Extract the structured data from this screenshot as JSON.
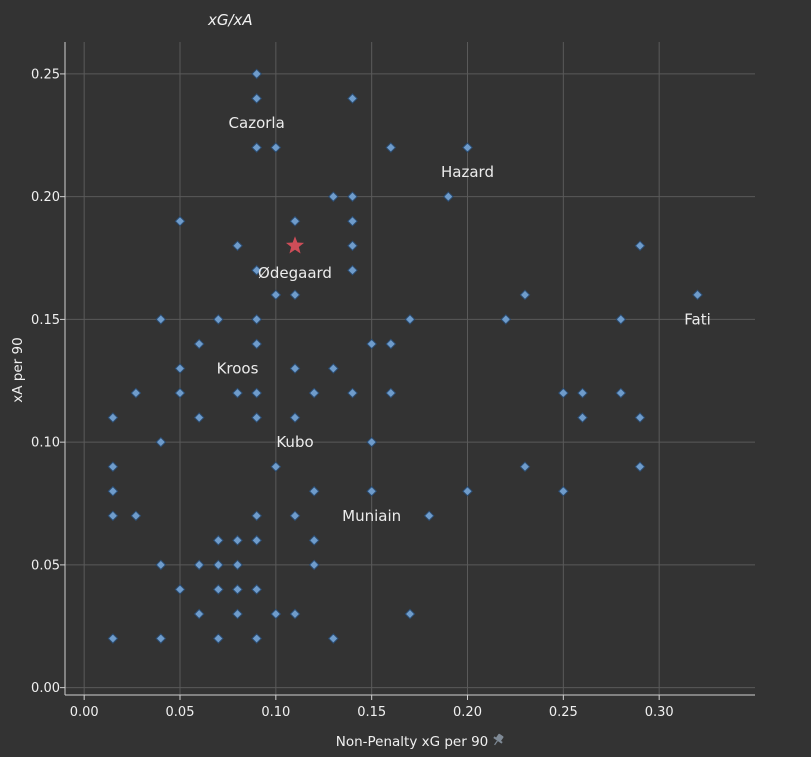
{
  "chart_data": {
    "type": "scatter",
    "title": "xG/xA",
    "xlabel": "Non-Penalty xG per 90",
    "ylabel": "xA per 90",
    "xlim": [
      -0.01,
      0.35
    ],
    "ylim": [
      -0.003,
      0.263
    ],
    "grid": true,
    "x_ticks": [
      "0.00",
      "0.05",
      "0.10",
      "0.15",
      "0.20",
      "0.25",
      "0.30"
    ],
    "y_ticks": [
      "0.00",
      "0.05",
      "0.10",
      "0.15",
      "0.20",
      "0.25"
    ],
    "points": [
      [
        0.09,
        0.25
      ],
      [
        0.09,
        0.24
      ],
      [
        0.14,
        0.24
      ],
      [
        0.09,
        0.22
      ],
      [
        0.1,
        0.22
      ],
      [
        0.16,
        0.22
      ],
      [
        0.2,
        0.22
      ],
      [
        0.13,
        0.2
      ],
      [
        0.14,
        0.2
      ],
      [
        0.19,
        0.2
      ],
      [
        0.05,
        0.19
      ],
      [
        0.11,
        0.19
      ],
      [
        0.14,
        0.19
      ],
      [
        0.08,
        0.18
      ],
      [
        0.14,
        0.18
      ],
      [
        0.29,
        0.18
      ],
      [
        0.09,
        0.17
      ],
      [
        0.14,
        0.17
      ],
      [
        0.1,
        0.16
      ],
      [
        0.11,
        0.16
      ],
      [
        0.23,
        0.16
      ],
      [
        0.32,
        0.16
      ],
      [
        0.04,
        0.15
      ],
      [
        0.07,
        0.15
      ],
      [
        0.09,
        0.15
      ],
      [
        0.17,
        0.15
      ],
      [
        0.22,
        0.15
      ],
      [
        0.28,
        0.15
      ],
      [
        0.06,
        0.14
      ],
      [
        0.09,
        0.14
      ],
      [
        0.15,
        0.14
      ],
      [
        0.16,
        0.14
      ],
      [
        0.05,
        0.13
      ],
      [
        0.11,
        0.13
      ],
      [
        0.13,
        0.13
      ],
      [
        0.027,
        0.12
      ],
      [
        0.05,
        0.12
      ],
      [
        0.08,
        0.12
      ],
      [
        0.09,
        0.12
      ],
      [
        0.12,
        0.12
      ],
      [
        0.14,
        0.12
      ],
      [
        0.16,
        0.12
      ],
      [
        0.25,
        0.12
      ],
      [
        0.26,
        0.12
      ],
      [
        0.28,
        0.12
      ],
      [
        0.015,
        0.11
      ],
      [
        0.06,
        0.11
      ],
      [
        0.09,
        0.11
      ],
      [
        0.11,
        0.11
      ],
      [
        0.26,
        0.11
      ],
      [
        0.29,
        0.11
      ],
      [
        0.04,
        0.1
      ],
      [
        0.15,
        0.1
      ],
      [
        0.015,
        0.09
      ],
      [
        0.1,
        0.09
      ],
      [
        0.23,
        0.09
      ],
      [
        0.29,
        0.09
      ],
      [
        0.015,
        0.08
      ],
      [
        0.12,
        0.08
      ],
      [
        0.15,
        0.08
      ],
      [
        0.2,
        0.08
      ],
      [
        0.25,
        0.08
      ],
      [
        0.015,
        0.07
      ],
      [
        0.027,
        0.07
      ],
      [
        0.09,
        0.07
      ],
      [
        0.11,
        0.07
      ],
      [
        0.18,
        0.07
      ],
      [
        0.07,
        0.06
      ],
      [
        0.08,
        0.06
      ],
      [
        0.09,
        0.06
      ],
      [
        0.12,
        0.06
      ],
      [
        0.04,
        0.05
      ],
      [
        0.06,
        0.05
      ],
      [
        0.07,
        0.05
      ],
      [
        0.08,
        0.05
      ],
      [
        0.12,
        0.05
      ],
      [
        0.05,
        0.04
      ],
      [
        0.07,
        0.04
      ],
      [
        0.08,
        0.04
      ],
      [
        0.09,
        0.04
      ],
      [
        0.06,
        0.03
      ],
      [
        0.08,
        0.03
      ],
      [
        0.1,
        0.03
      ],
      [
        0.11,
        0.03
      ],
      [
        0.17,
        0.03
      ],
      [
        0.015,
        0.02
      ],
      [
        0.04,
        0.02
      ],
      [
        0.07,
        0.02
      ],
      [
        0.09,
        0.02
      ],
      [
        0.13,
        0.02
      ]
    ],
    "highlight": {
      "x": 0.11,
      "y": 0.18,
      "color": "#cd4d58"
    },
    "annotations": [
      {
        "text": "Cazorla",
        "x": 0.09,
        "y": 0.23
      },
      {
        "text": "Hazard",
        "x": 0.2,
        "y": 0.21
      },
      {
        "text": "Ødegaard",
        "x": 0.11,
        "y": 0.169
      },
      {
        "text": "Fati",
        "x": 0.32,
        "y": 0.15
      },
      {
        "text": "Kroos",
        "x": 0.08,
        "y": 0.13
      },
      {
        "text": "Kubo",
        "x": 0.11,
        "y": 0.1
      },
      {
        "text": "Muniain",
        "x": 0.15,
        "y": 0.07
      }
    ],
    "marker_color": "#6f9ccb"
  }
}
